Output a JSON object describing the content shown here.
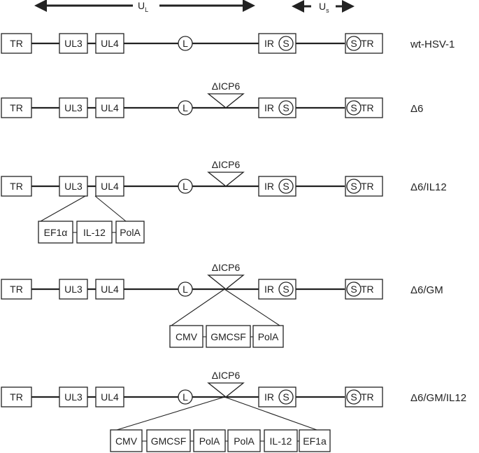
{
  "header": {
    "ul_label": "U",
    "ul_sub": "L",
    "us_label": "U",
    "us_sub": "s"
  },
  "backbone": {
    "tr": "TR",
    "ul3": "UL3",
    "ul4": "UL4",
    "l": "L",
    "ir": "IR",
    "s": "S"
  },
  "deletion_label": "ΔICP6",
  "constructs": [
    {
      "name": "wt-HSV-1",
      "deletion": false,
      "insert": []
    },
    {
      "name": "Δ6",
      "deletion": true,
      "insert": []
    },
    {
      "name": "Δ6/IL12",
      "deletion": true,
      "insert_site": "UL3-UL4",
      "insert": [
        "EF1α",
        "IL-12",
        "PolA"
      ]
    },
    {
      "name": "Δ6/GM",
      "deletion": true,
      "insert_site": "ICP6",
      "insert": [
        "CMV",
        "GMCSF",
        "PolA"
      ]
    },
    {
      "name": "Δ6/GM/IL12",
      "deletion": true,
      "insert_site": "ICP6",
      "insert": [
        "CMV",
        "GMCSF",
        "PolA",
        "PolA",
        "IL-12",
        "EF1a"
      ]
    }
  ]
}
